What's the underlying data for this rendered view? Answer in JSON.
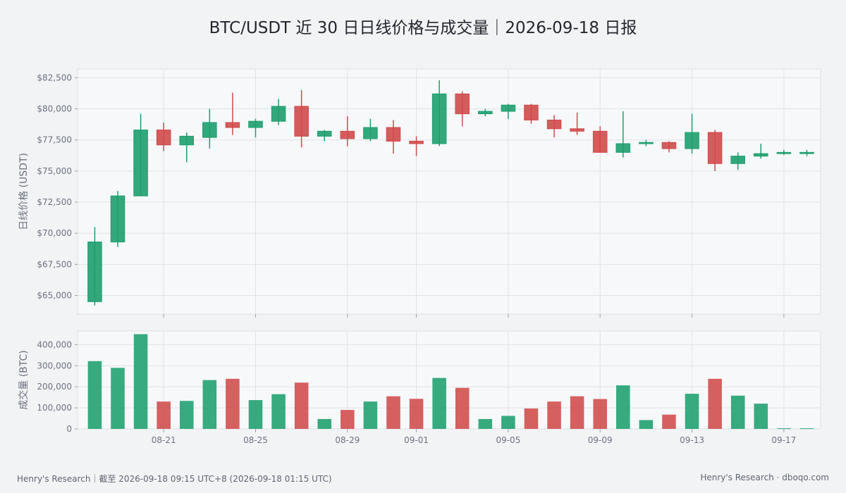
{
  "title": "BTC/USDT 近 30 日日线价格与成交量｜2026-09-18 日报",
  "footer": {
    "left": "Henry's Research｜截至 2026-09-18 09:15 UTC+8 (2026-09-18 01:15 UTC)",
    "right": "Henry's Research · dboqo.com"
  },
  "colors": {
    "up": "#1e9e6e",
    "down": "#d04a4a",
    "grid": "#dfe2e7",
    "panel": "#f7f8fa",
    "axis_text": "#6b7280"
  },
  "chart_data": [
    {
      "type": "candlestick",
      "ylabel": "日线价格 (USDT)",
      "yticks": [
        "$65,000",
        "$67,500",
        "$70,000",
        "$72,500",
        "$75,000",
        "$77,500",
        "$80,000",
        "$82,500"
      ],
      "ytick_values": [
        65000,
        67500,
        70000,
        72500,
        75000,
        77500,
        80000,
        82500
      ],
      "ylim": [
        63500,
        83200
      ],
      "grid": true,
      "x": [
        "2026-08-18",
        "2026-08-19",
        "2026-08-20",
        "2026-08-21",
        "2026-08-22",
        "2026-08-23",
        "2026-08-24",
        "2026-08-25",
        "2026-08-26",
        "2026-08-27",
        "2026-08-28",
        "2026-08-29",
        "2026-08-30",
        "2026-08-31",
        "2026-09-01",
        "2026-09-02",
        "2026-09-03",
        "2026-09-04",
        "2026-09-05",
        "2026-09-06",
        "2026-09-07",
        "2026-09-08",
        "2026-09-09",
        "2026-09-10",
        "2026-09-11",
        "2026-09-12",
        "2026-09-13",
        "2026-09-14",
        "2026-09-15",
        "2026-09-16",
        "2026-09-17",
        "2026-09-18"
      ],
      "ohlc": [
        [
          64500,
          70500,
          64200,
          69300
        ],
        [
          69300,
          73400,
          68900,
          73000
        ],
        [
          73000,
          79600,
          73000,
          78300
        ],
        [
          78300,
          78900,
          76600,
          77100
        ],
        [
          77100,
          78100,
          75700,
          77800
        ],
        [
          77700,
          80000,
          76800,
          78900
        ],
        [
          78900,
          81300,
          77900,
          78500
        ],
        [
          78500,
          79200,
          77700,
          79000
        ],
        [
          79000,
          80800,
          78700,
          80200
        ],
        [
          80200,
          81500,
          76900,
          77800
        ],
        [
          77800,
          78300,
          77400,
          78200
        ],
        [
          78200,
          79400,
          77000,
          77600
        ],
        [
          77600,
          79200,
          77400,
          78500
        ],
        [
          78500,
          79100,
          76400,
          77400
        ],
        [
          77400,
          77800,
          76200,
          77200
        ],
        [
          77200,
          82300,
          77000,
          81200
        ],
        [
          81200,
          81400,
          78600,
          79600
        ],
        [
          79600,
          80000,
          79400,
          79800
        ],
        [
          79800,
          80400,
          79200,
          80300
        ],
        [
          80300,
          80400,
          78800,
          79100
        ],
        [
          79100,
          79500,
          77700,
          78400
        ],
        [
          78400,
          79700,
          77900,
          78200
        ],
        [
          78200,
          78600,
          76500,
          76500
        ],
        [
          76500,
          79800,
          76100,
          77200
        ],
        [
          77200,
          77500,
          77000,
          77300
        ],
        [
          77300,
          77400,
          76500,
          76800
        ],
        [
          76800,
          79600,
          76400,
          78100
        ],
        [
          78100,
          78300,
          75000,
          75600
        ],
        [
          75600,
          76500,
          75100,
          76200
        ],
        [
          76200,
          77200,
          76000,
          76400
        ],
        [
          76400,
          76700,
          76300,
          76500
        ],
        [
          76400,
          76700,
          76200,
          76500
        ]
      ]
    },
    {
      "type": "bar",
      "ylabel": "成交量 (BTC)",
      "yticks": [
        "0",
        "100,000",
        "200,000",
        "300,000",
        "400,000"
      ],
      "ytick_values": [
        0,
        100000,
        200000,
        300000,
        400000
      ],
      "ylim": [
        0,
        465000
      ],
      "grid": true,
      "x": [
        "2026-08-18",
        "2026-08-19",
        "2026-08-20",
        "2026-08-21",
        "2026-08-22",
        "2026-08-23",
        "2026-08-24",
        "2026-08-25",
        "2026-08-26",
        "2026-08-27",
        "2026-08-28",
        "2026-08-29",
        "2026-08-30",
        "2026-08-31",
        "2026-09-01",
        "2026-09-02",
        "2026-09-03",
        "2026-09-04",
        "2026-09-05",
        "2026-09-06",
        "2026-09-07",
        "2026-09-08",
        "2026-09-09",
        "2026-09-10",
        "2026-09-11",
        "2026-09-12",
        "2026-09-13",
        "2026-09-14",
        "2026-09-15",
        "2026-09-16",
        "2026-09-17",
        "2026-09-18"
      ],
      "values": [
        322000,
        290000,
        450000,
        130000,
        133000,
        232000,
        238000,
        137000,
        165000,
        220000,
        47000,
        90000,
        130000,
        155000,
        143000,
        242000,
        195000,
        47000,
        62000,
        97000,
        130000,
        155000,
        142000,
        207000,
        42000,
        68000,
        167000,
        238000,
        158000,
        120000,
        3000,
        3000
      ]
    }
  ],
  "xtick_labels": [
    "08-21",
    "08-25",
    "08-29",
    "09-01",
    "09-05",
    "09-09",
    "09-13",
    "09-17"
  ],
  "xtick_dates": [
    "2026-08-21",
    "2026-08-25",
    "2026-08-29",
    "2026-09-01",
    "2026-09-05",
    "2026-09-09",
    "2026-09-13",
    "2026-09-17"
  ]
}
